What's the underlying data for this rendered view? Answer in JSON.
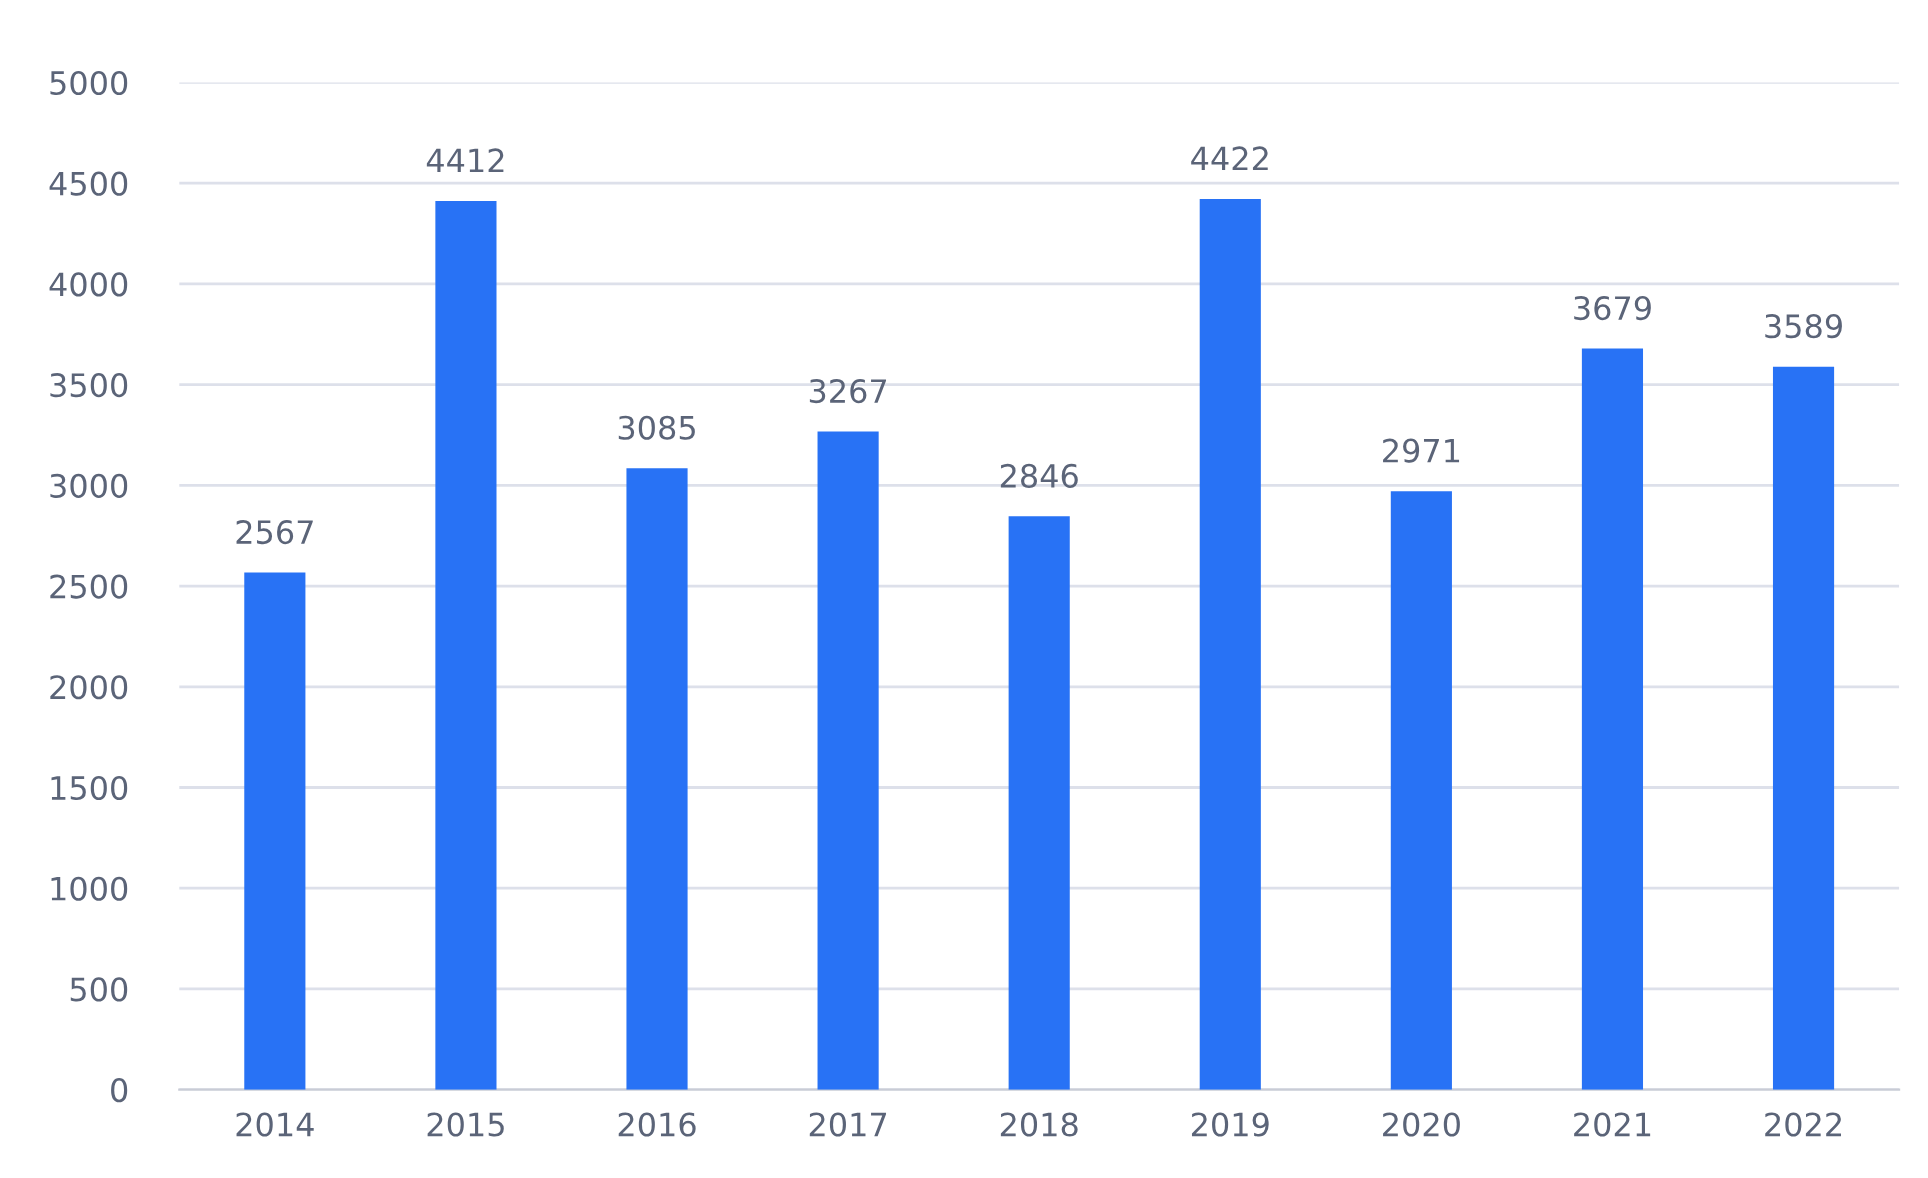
{
  "chart_data": {
    "type": "bar",
    "categories": [
      "2014",
      "2015",
      "2016",
      "2017",
      "2018",
      "2019",
      "2020",
      "2021",
      "2022"
    ],
    "values": [
      2567,
      4412,
      3085,
      3267,
      2846,
      4422,
      2971,
      3679,
      3589
    ],
    "color": "#2872f5",
    "ylim": [
      0,
      5000
    ],
    "yticks": [
      0,
      500,
      1000,
      1500,
      2000,
      2500,
      3000,
      3500,
      4000,
      4500,
      5000
    ],
    "grid": "y",
    "data_labels": true
  }
}
